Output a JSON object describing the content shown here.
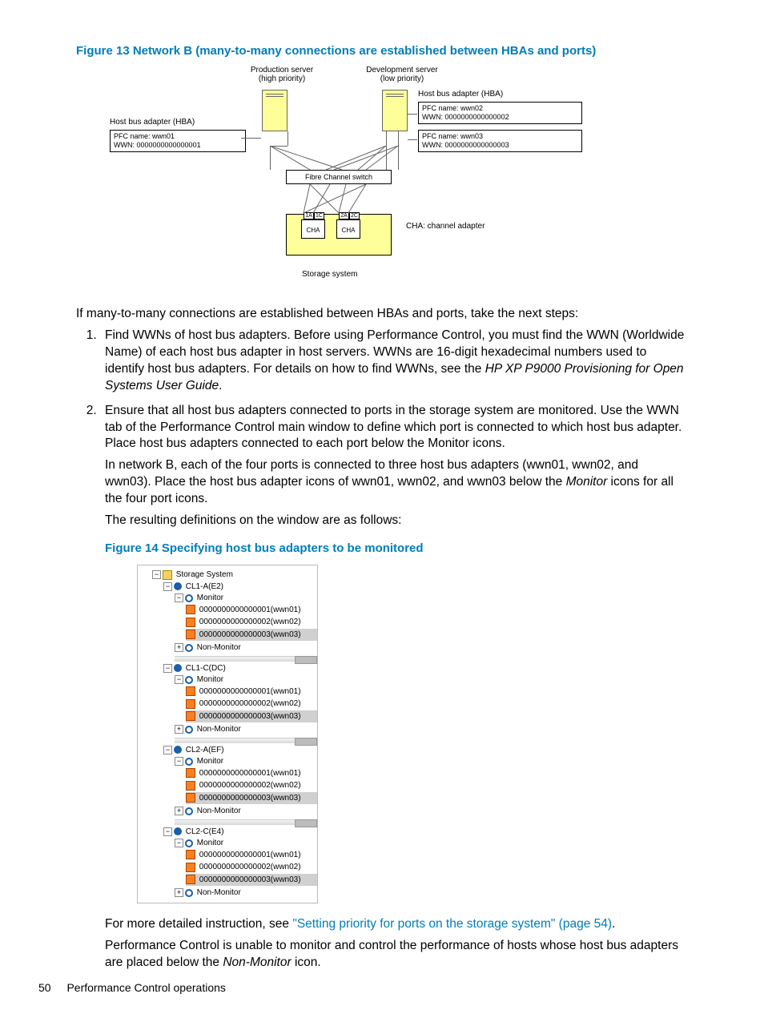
{
  "figure13": {
    "caption": "Figure 13 Network B (many-to-many connections are established between HBAs and ports)",
    "prod_server": "Production server",
    "prod_priority": "(high priority)",
    "dev_server": "Development server",
    "dev_priority": "(low priority)",
    "hba_title": "Host bus adapter (HBA)",
    "hba1_pfc": "PFC name:  wwn01",
    "hba1_wwn": "WWN:      0000000000000001",
    "hba2_pfc": "PFC name:  wwn02",
    "hba2_wwn": "WWN:              0000000000000002",
    "hba3_pfc": "PFC name:  wwn03",
    "hba3_wwn": "WWN:              0000000000000003",
    "switch": "Fibre Channel switch",
    "port1a": "1A",
    "port1c": "1C",
    "port2a": "2A",
    "port2c": "2C",
    "cha": "CHA",
    "cha_note": "CHA: channel adapter",
    "storage": "Storage system"
  },
  "para_intro": "If many-to-many connections are established between HBAs and ports, take the next steps:",
  "li1_a": "Find WWNs of host bus adapters. Before using Performance Control, you must find the WWN (Worldwide Name) of each host bus adapter in host servers. WWNs are 16-digit hexadecimal numbers used to identify host bus adapters. For details on how to find WWNs, see the ",
  "li1_b": "HP XP P9000 Provisioning for Open Systems User Guide",
  "li1_c": ".",
  "li2_a": "Ensure that all host bus adapters connected to ports in the storage system are monitored. Use the WWN tab of the Performance Control main window to define which port is connected to which host bus adapter. Place host bus adapters connected to each port below the Monitor icons.",
  "li2_b1": "In network B, each of the four ports is connected to three host bus adapters (wwn01, wwn02, and wwn03). Place the host bus adapter icons of wwn01, wwn02, and wwn03 below the ",
  "li2_b2": "Monitor",
  "li2_b3": " icons for all the four port icons.",
  "li2_c": "The resulting definitions on the window are as follows:",
  "figure14_caption": "Figure 14 Specifying host bus adapters to be monitored",
  "tree": {
    "root": "Storage System",
    "ports": [
      "CL1-A(E2)",
      "CL1-C(DC)",
      "CL2-A(EF)",
      "CL2-C(E4)"
    ],
    "monitor": "Monitor",
    "nonmonitor": "Non-Monitor",
    "wwns": [
      "0000000000000001(wwn01)",
      "0000000000000002(wwn02)",
      "0000000000000003(wwn03)"
    ]
  },
  "after1a": "For more detailed instruction, see ",
  "after1b": "\"Setting priority for ports on the storage system\" (page 54)",
  "after1c": ".",
  "after2a": "Performance Control is unable to monitor and control the performance of hosts whose host bus adapters are placed below the ",
  "after2b": "Non-Monitor",
  "after2c": " icon.",
  "footer_page": "50",
  "footer_text": "Performance Control operations"
}
